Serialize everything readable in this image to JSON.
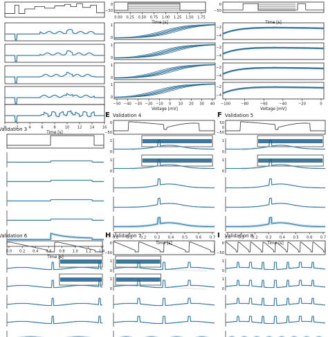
{
  "figure": {
    "colors": {
      "trace": "#1d5f87",
      "trace_light": "#9cc7e0",
      "protocol": "#444444",
      "gray": "#8a8a8a"
    },
    "panel_letters": {
      "E": "E",
      "F": "F",
      "H": "H",
      "I": "I"
    },
    "titles": {
      "v3": "Validation 3",
      "v4": "Validation 4",
      "v5": "Validation 5",
      "v6": "Validation 6",
      "v7": "Validation 7",
      "v8": "Validation 8"
    },
    "tr": {
      "xlabel": "Time [s]",
      "yticks": [
        "0",
        "−50"
      ],
      "xticks": [
        "0.00",
        "0.25",
        "0.50",
        "0.75",
        "1.00",
        "1.25",
        "1.50",
        "1.75"
      ]
    },
    "tl": {
      "xlabel": "Time [s]",
      "xticks": [
        "0",
        "2",
        "4",
        "6",
        "8",
        "10",
        "12",
        "14",
        "16"
      ]
    },
    "mid": {
      "xlabel": "Voltage [mV]",
      "yticks": [
        "1",
        "0"
      ],
      "xticks": [
        "−50",
        "−40",
        "−30",
        "−20",
        "−10",
        "0",
        "10",
        "20",
        "30",
        "40"
      ]
    },
    "right": {
      "xlabel": "Voltage [mV]",
      "yticks": [
        "−2",
        "−4"
      ],
      "xticks": [
        "−100",
        "−80",
        "−60",
        "−40",
        "−20",
        "0"
      ]
    },
    "v3": {
      "xlabel": "Time [s]",
      "xticks": [
        "0.0",
        "0.2",
        "0.4",
        "0.6",
        "0.8",
        "1.0",
        "1.2",
        "1.4"
      ]
    },
    "v4": {
      "xlabel": "Time [s]",
      "yticks_proto": [
        "0",
        "−50"
      ],
      "yticks": [
        "1",
        "0"
      ],
      "xticks": [
        "0.0",
        "0.1",
        "0.2",
        "0.3",
        "0.4",
        "0.5",
        "0.6",
        "0.7"
      ]
    },
    "v5": {
      "xlabel": "Time [s]",
      "yticks_proto": [
        "50",
        "0",
        "−50"
      ],
      "yticks": [
        "1",
        "0"
      ],
      "xticks": [
        "0.0",
        "0.1",
        "0.2",
        "0.3",
        "0.4",
        "0.5",
        "0.6",
        "0.7"
      ]
    },
    "v6": {
      "xlabel": "",
      "xticks": []
    },
    "v7": {
      "xlabel": "",
      "yticks_proto": [
        "0",
        "−50"
      ],
      "yticks": [
        "1",
        "0"
      ],
      "xticks": []
    },
    "v8": {
      "xlabel": "",
      "yticks_proto": [
        "0",
        "−50"
      ],
      "yticks": [
        "1",
        "0"
      ],
      "xticks": []
    }
  },
  "chart_data": [
    {
      "type": "line",
      "title": "",
      "xlabel": "Time [s]",
      "xlim": [
        0,
        16
      ],
      "series_count": 5
    },
    {
      "type": "line",
      "title": "",
      "xlabel": "Time [s]",
      "xlim": [
        0,
        1.75
      ],
      "ylim": [
        -50,
        0
      ]
    },
    {
      "type": "line",
      "title": "",
      "xlabel": "Voltage [mV]",
      "xlim": [
        -50,
        40
      ],
      "ylim": [
        0,
        1
      ],
      "series_count": 4
    },
    {
      "type": "line",
      "title": "",
      "xlabel": "Voltage [mV]",
      "xlim": [
        -100,
        0
      ],
      "ylim": [
        -4,
        -2
      ],
      "series_count": 4
    },
    {
      "type": "line",
      "title": "Validation 3",
      "xlabel": "Time [s]",
      "xlim": [
        0,
        1.4
      ]
    },
    {
      "type": "line",
      "title": "Validation 4",
      "xlabel": "Time [s]",
      "xlim": [
        0,
        0.75
      ],
      "ylim": [
        0,
        1
      ]
    },
    {
      "type": "line",
      "title": "Validation 5",
      "xlabel": "Time [s]",
      "xlim": [
        0,
        0.75
      ],
      "ylim": [
        0,
        1
      ]
    },
    {
      "type": "line",
      "title": "Validation 6",
      "xlabel": ""
    },
    {
      "type": "line",
      "title": "Validation 7",
      "xlabel": "",
      "ylim": [
        0,
        1
      ]
    },
    {
      "type": "line",
      "title": "Validation 8",
      "xlabel": "",
      "ylim": [
        0,
        1
      ]
    }
  ]
}
